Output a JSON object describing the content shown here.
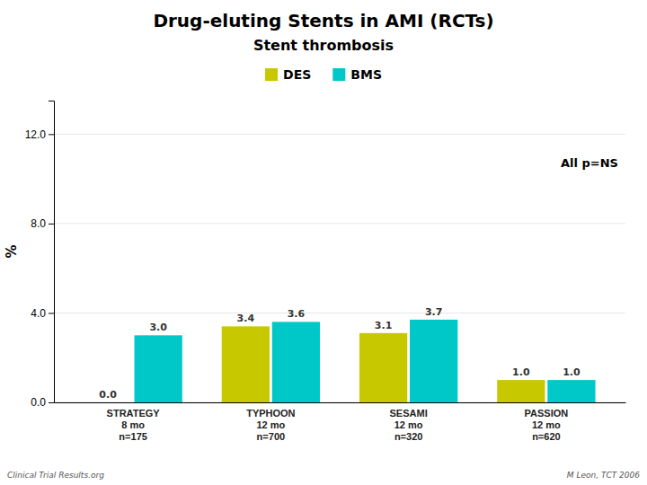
{
  "chart_data": {
    "type": "bar",
    "title": "Drug-eluting Stents in AMI (RCTs)",
    "subtitle": "Stent thrombosis",
    "ylabel": "%",
    "categories": [
      "STRATEGY\n8 mo\nn=175",
      "TYPHOON\n12 mo\nn=700",
      "SESAMI\n12 mo\nn=320",
      "PASSION\n12 mo\nn=620"
    ],
    "series": [
      {
        "name": "DES",
        "color": "#c8c800",
        "values": [
          0.0,
          3.4,
          3.1,
          1.0
        ],
        "value_labels": [
          "0.0",
          "3.4",
          "3.1",
          "1.0"
        ]
      },
      {
        "name": "BMS",
        "color": "#00c8c8",
        "values": [
          3.0,
          3.6,
          3.7,
          1.0
        ],
        "value_labels": [
          "3.0",
          "3.6",
          "3.7",
          "1.0"
        ]
      }
    ],
    "ylim": [
      0,
      13.5
    ],
    "yticks": [
      {
        "value": 0,
        "label": "0.0"
      },
      {
        "value": 4,
        "label": "4.0"
      },
      {
        "value": 8,
        "label": "8.0"
      },
      {
        "value": 12,
        "label": "12.0"
      }
    ],
    "grid": true,
    "legend": "top",
    "data_labels": true,
    "annotations": [
      "All p=NS",
      "Clinical Trial Results.org",
      "M Leon, TCT 2006"
    ]
  }
}
